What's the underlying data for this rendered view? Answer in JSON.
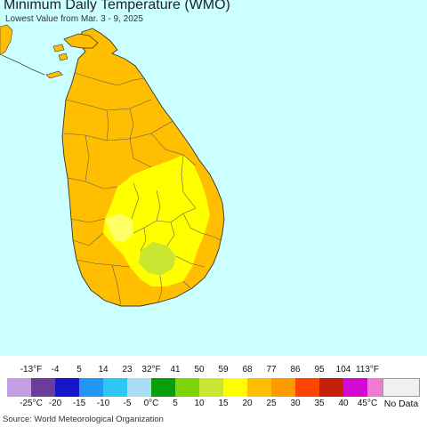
{
  "title": "Minimum Daily Temperature (WMO)",
  "subtitle": "Lowest Value from Mar. 3 - 9, 2025",
  "source": "Source: World Meteorological Organization",
  "colors": {
    "ocean": "#ccffff",
    "land": "#ffbf00",
    "yellow": "#ffff00",
    "pale_yellow": "#ffff66",
    "lime": "#c8e632",
    "neighbor_land": "#ffbf00"
  },
  "legend": {
    "fahrenheit_labels": [
      "-13°F",
      "-4",
      "5",
      "14",
      "23",
      "32°F",
      "41",
      "50",
      "59",
      "68",
      "77",
      "86",
      "95",
      "104",
      "113°F"
    ],
    "celsius_labels": [
      "-25°C",
      "-20",
      "-15",
      "-10",
      "-5",
      "0°C",
      "5",
      "10",
      "15",
      "20",
      "25",
      "30",
      "35",
      "40",
      "45°C"
    ],
    "swatch_colors": [
      "#c19fe0",
      "#6a3d9a",
      "#1515cc",
      "#2196f3",
      "#2ec7f5",
      "#a9dcf5",
      "#0a9e0a",
      "#7dd40a",
      "#c8e632",
      "#ffff00",
      "#ffbf00",
      "#ff9900",
      "#ff4400",
      "#c4200a",
      "#d20ad2",
      "#f07ad2"
    ],
    "no_data_label": "No Data",
    "no_data_color": "#f0f0f0"
  }
}
